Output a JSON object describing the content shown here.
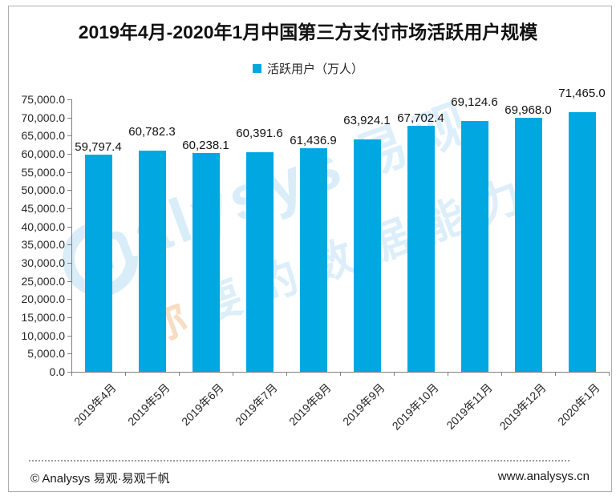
{
  "chart_data": {
    "type": "bar",
    "title": "2019年4月-2020年1月中国第三方支付市场活跃用户规模",
    "series_name": "活跃用户（万人）",
    "categories": [
      "2019年4月",
      "2019年5月",
      "2019年6月",
      "2019年7月",
      "2019年8月",
      "2019年9月",
      "2019年10月",
      "2019年11月",
      "2019年12月",
      "2020年1月"
    ],
    "values": [
      59797.4,
      60782.3,
      60238.1,
      60391.6,
      61436.9,
      63924.1,
      67702.4,
      69124.6,
      69968.0,
      71465.0
    ],
    "value_labels": [
      "59,797.4",
      "60,782.3",
      "60,238.1",
      "60,391.6",
      "61,436.9",
      "63,924.1",
      "67,702.4",
      "69,124.6",
      "69,968.0",
      "71,465.0"
    ],
    "xlabel": "",
    "ylabel": "",
    "ylim": [
      0,
      75000
    ],
    "ytick_step": 5000,
    "ytick_labels_top_to_bottom": [
      "75,000.0",
      "70,000.0",
      "65,000.0",
      "60,000.0",
      "55,000.0",
      "50,000.0",
      "45,000.0",
      "40,000.0",
      "35,000.0",
      "30,000.0",
      "25,000.0",
      "20,000.0",
      "15,000.0",
      "10,000.0",
      "5,000.0",
      "0.0"
    ],
    "grid": false,
    "legend_position": "top-center",
    "bar_color": "#00A7E1"
  },
  "watermark": {
    "logo": "analysys-swirl-logo",
    "brand": "nalysys",
    "brand_cn": "易观",
    "tagline": "你要的数据能力",
    "blue": "#d9edf8",
    "orange": "#f6ddc3"
  },
  "footer": {
    "left": "© Analysys 易观·易观千帆",
    "right": "www.analysys.cn"
  }
}
